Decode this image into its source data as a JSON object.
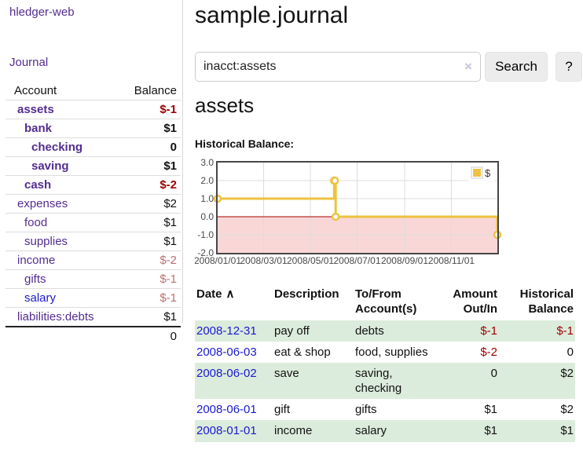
{
  "sidebar": {
    "brand": "hledger-web",
    "nav_journal": "Journal",
    "header": {
      "account": "Account",
      "balance": "Balance"
    },
    "accounts": [
      {
        "name": "assets",
        "depth": 1,
        "bold": true,
        "balance": "$-1",
        "balance_tone": "negative-strong",
        "link_tone": "purple"
      },
      {
        "name": "bank",
        "depth": 2,
        "bold": true,
        "balance": "$1",
        "balance_tone": "normal",
        "link_tone": "purple"
      },
      {
        "name": "checking",
        "depth": 3,
        "bold": true,
        "balance": "0",
        "balance_tone": "normal",
        "link_tone": "purple"
      },
      {
        "name": "saving",
        "depth": 3,
        "bold": true,
        "balance": "$1",
        "balance_tone": "normal",
        "link_tone": "purple"
      },
      {
        "name": "cash",
        "depth": 2,
        "bold": true,
        "balance": "$-2",
        "balance_tone": "negative-strong",
        "link_tone": "purple"
      },
      {
        "name": "expenses",
        "depth": 1,
        "bold": false,
        "balance": "$2",
        "balance_tone": "normal",
        "link_tone": "purple"
      },
      {
        "name": "food",
        "depth": 2,
        "bold": false,
        "balance": "$1",
        "balance_tone": "normal",
        "link_tone": "purple"
      },
      {
        "name": "supplies",
        "depth": 2,
        "bold": false,
        "balance": "$1",
        "balance_tone": "normal",
        "link_tone": "purple"
      },
      {
        "name": "income",
        "depth": 1,
        "bold": false,
        "balance": "$-2",
        "balance_tone": "negative-soft",
        "link_tone": "purple"
      },
      {
        "name": "gifts",
        "depth": 2,
        "bold": false,
        "balance": "$-1",
        "balance_tone": "negative-soft",
        "link_tone": "purple"
      },
      {
        "name": "salary",
        "depth": 2,
        "bold": false,
        "balance": "$-1",
        "balance_tone": "negative-soft",
        "link_tone": "blue"
      },
      {
        "name": "liabilities:debts",
        "depth": 1,
        "bold": false,
        "balance": "$1",
        "balance_tone": "normal",
        "link_tone": "purple"
      }
    ],
    "total": "0"
  },
  "main": {
    "title": "sample.journal",
    "search": {
      "value": "inacct:assets",
      "clear_icon": "×",
      "search_label": "Search",
      "help_label": "?"
    },
    "account_heading": "assets",
    "chart_label": "Historical Balance:"
  },
  "chart_data": {
    "type": "line",
    "title": "Historical Balance",
    "step": true,
    "x_range": [
      "2008-01-01",
      "2008-12-31"
    ],
    "ylim": [
      -2.0,
      3.0
    ],
    "yticks": [
      "3.0",
      "2.0",
      "1.0",
      "0.0",
      "-1.0",
      "-2.0"
    ],
    "ytick_values": [
      3,
      2,
      1,
      0,
      -1,
      -2
    ],
    "xticks": [
      {
        "date": "2008-01-01",
        "label": "2008/01/01"
      },
      {
        "date": "2008-03-01",
        "label": "2008/03/01"
      },
      {
        "date": "2008-05-01",
        "label": "2008/05/01"
      },
      {
        "date": "2008-07-01",
        "label": "2008/07/01"
      },
      {
        "date": "2008-09-01",
        "label": "2008/09/01"
      },
      {
        "date": "2008-11-01",
        "label": "2008/11/01"
      }
    ],
    "series": [
      {
        "name": "$",
        "points": [
          [
            "2008-01-01",
            1
          ],
          [
            "2008-06-01",
            2
          ],
          [
            "2008-06-02",
            2
          ],
          [
            "2008-06-03",
            0
          ],
          [
            "2008-12-31",
            -1
          ]
        ]
      }
    ],
    "legend": [
      {
        "label": "$",
        "color": "#EDC240"
      }
    ],
    "legend_position": "top-right",
    "grid": true,
    "colors": {
      "line": "#EDC240",
      "point_fill": "#ffffff",
      "negative_region": "#f9d7d7",
      "zero_line": "#a40000",
      "grid": "#dcdcdc",
      "border": "#464646",
      "tick_text": "#4a4a4a"
    }
  },
  "register": {
    "columns": [
      {
        "label": "Date",
        "sort_icon": "∧",
        "align": "left"
      },
      {
        "label": "Description",
        "align": "left"
      },
      {
        "label": "To/From Account(s)",
        "align": "left"
      },
      {
        "label": "Amount Out/In",
        "align": "right"
      },
      {
        "label": "Historical Balance",
        "align": "right"
      }
    ],
    "rows": [
      {
        "date": "2008-12-31",
        "description": "pay off",
        "accounts": "debts",
        "amount": "$-1",
        "amount_tone": "negative",
        "balance": "$-1",
        "balance_tone": "negative"
      },
      {
        "date": "2008-06-03",
        "description": "eat & shop",
        "accounts": "food, supplies",
        "amount": "$-2",
        "amount_tone": "negative",
        "balance": "0",
        "balance_tone": "normal"
      },
      {
        "date": "2008-06-02",
        "description": "save",
        "accounts": "saving, checking",
        "amount": "0",
        "amount_tone": "normal",
        "balance": "$2",
        "balance_tone": "normal"
      },
      {
        "date": "2008-06-01",
        "description": "gift",
        "accounts": "gifts",
        "amount": "$1",
        "amount_tone": "normal",
        "balance": "$2",
        "balance_tone": "normal"
      },
      {
        "date": "2008-01-01",
        "description": "income",
        "accounts": "salary",
        "amount": "$1",
        "amount_tone": "normal",
        "balance": "$1",
        "balance_tone": "normal"
      }
    ]
  }
}
